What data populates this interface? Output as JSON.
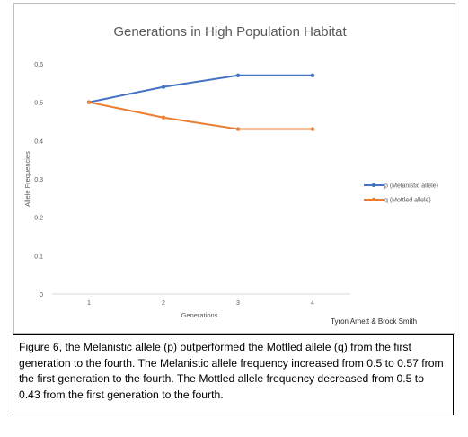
{
  "chart_data": {
    "type": "line",
    "title": "Generations in High Population Habitat",
    "xlabel": "Generations",
    "ylabel": "Allele  Frequencies",
    "categories": [
      "1",
      "2",
      "3",
      "4"
    ],
    "ylim": [
      0,
      0.6
    ],
    "yticks": [
      "0",
      "0.1",
      "0.2",
      "0.3",
      "0.4",
      "0.5",
      "0.6"
    ],
    "grid": false,
    "legend_position": "right",
    "series": [
      {
        "name": "p (Melanistic allele)",
        "values": [
          0.5,
          0.54,
          0.57,
          0.57
        ],
        "color": "#4472c4"
      },
      {
        "name": "q (Mottled allele)",
        "values": [
          0.5,
          0.46,
          0.43,
          0.43
        ],
        "color": "#ed7d31"
      }
    ],
    "annotation": "Tyron Arnett & Brock Smith"
  },
  "caption": {
    "text": "Figure 6, the Melanistic allele (p) outperformed the Mottled allele (q) from the first generation to the fourth. The Melanistic allele frequency increased from 0.5 to 0.57 from the first generation to the fourth. The Mottled allele frequency decreased from 0.5 to 0.43 from the first generation to the fourth."
  }
}
